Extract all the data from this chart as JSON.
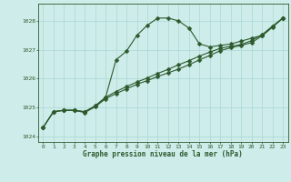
{
  "title": "Graphe pression niveau de la mer (hPa)",
  "background_color": "#ceecea",
  "grid_color": "#a8d8d4",
  "line_color": "#2d5a2d",
  "xlim": [
    -0.5,
    23.5
  ],
  "ylim": [
    1023.8,
    1028.6
  ],
  "yticks": [
    1024,
    1025,
    1026,
    1027,
    1028
  ],
  "xticks": [
    0,
    1,
    2,
    3,
    4,
    5,
    6,
    7,
    8,
    9,
    10,
    11,
    12,
    13,
    14,
    15,
    16,
    17,
    18,
    19,
    20,
    21,
    22,
    23
  ],
  "series1_x": [
    0,
    1,
    2,
    3,
    4,
    5,
    6,
    7,
    8,
    9,
    10,
    11,
    12,
    13,
    14,
    15,
    16,
    17,
    18,
    19,
    20,
    21,
    22,
    23
  ],
  "series1_y": [
    1024.3,
    1024.85,
    1024.9,
    1024.9,
    1024.85,
    1025.05,
    1025.35,
    1026.65,
    1026.95,
    1027.5,
    1027.85,
    1028.1,
    1028.1,
    1028.0,
    1027.75,
    1027.2,
    1027.1,
    1027.15,
    1027.2,
    1027.3,
    1027.4,
    1027.5,
    1027.8,
    1028.1
  ],
  "series2_x": [
    0,
    1,
    2,
    3,
    4,
    5,
    6,
    7,
    8,
    9,
    10,
    11,
    12,
    13,
    14,
    15,
    16,
    17,
    18,
    19,
    20,
    21,
    22,
    23
  ],
  "series2_y": [
    1024.3,
    1024.85,
    1024.9,
    1024.9,
    1024.85,
    1025.05,
    1025.35,
    1025.55,
    1025.72,
    1025.88,
    1026.02,
    1026.18,
    1026.32,
    1026.48,
    1026.62,
    1026.78,
    1026.92,
    1027.05,
    1027.12,
    1027.18,
    1027.32,
    1027.52,
    1027.82,
    1028.1
  ],
  "series3_x": [
    0,
    1,
    2,
    3,
    4,
    5,
    6,
    7,
    8,
    9,
    10,
    11,
    12,
    13,
    14,
    15,
    16,
    17,
    18,
    19,
    20,
    21,
    22,
    23
  ],
  "series3_y": [
    1024.3,
    1024.85,
    1024.9,
    1024.9,
    1024.82,
    1025.02,
    1025.3,
    1025.48,
    1025.64,
    1025.8,
    1025.93,
    1026.07,
    1026.2,
    1026.33,
    1026.48,
    1026.65,
    1026.8,
    1026.97,
    1027.07,
    1027.15,
    1027.25,
    1027.48,
    1027.78,
    1028.1
  ]
}
